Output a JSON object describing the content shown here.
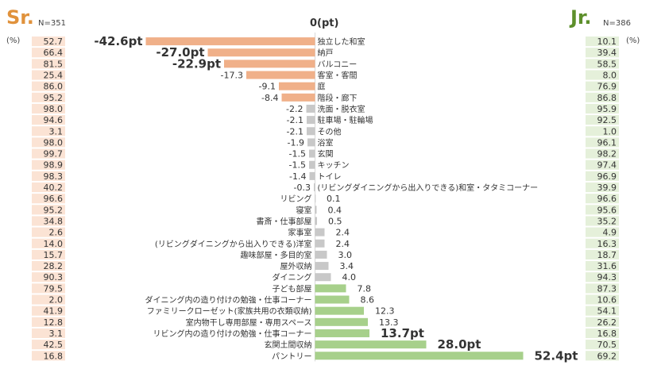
{
  "header": {
    "sr_label": "Sr.",
    "sr_n": "N=351",
    "jr_label": "Jr.",
    "jr_n": "N=386",
    "center_label": "0(pt)",
    "pct_left": "(%)",
    "pct_right": "(%)"
  },
  "colors": {
    "sr_accent": "#e0923c",
    "jr_accent": "#5d8f2b",
    "negative_bar": "#f0b089",
    "neutral_bar": "#c8c8c8",
    "positive_bar": "#a7d08b",
    "sr_cell": "#fbe3d4",
    "jr_cell": "#e5f0da"
  },
  "chart_data": {
    "type": "bar",
    "orientation": "horizontal diverging",
    "categories": [
      "独立した和室",
      "納戸",
      "バルコニー",
      "客室・客間",
      "庭",
      "階段・廊下",
      "洗面・脱衣室",
      "駐車場・駐輪場",
      "その他",
      "浴室",
      "玄関",
      "キッチン",
      "トイレ",
      "(リビングダイニングから出入りできる)和室・タタミコーナー",
      "リビング",
      "寝室",
      "書斎・仕事部屋",
      "家事室",
      "(リビングダイニングから出入りできる)洋室",
      "趣味部屋・多目的室",
      "屋外収納",
      "ダイニング",
      "子ども部屋",
      "ダイニング内の造り付けの勉強・仕事コーナー",
      "ファミリークローゼット(家族共用の衣類収納)",
      "室内物干し専用部屋・専用スペース",
      "リビング内の造り付けの勉強・仕事コーナー",
      "玄関土間収納",
      "パントリー"
    ],
    "diff_labels": [
      "-42.6pt",
      "-27.0pt",
      "-22.9pt",
      "-17.3",
      "-9.1",
      "-8.4",
      "-2.2",
      "-2.1",
      "-2.1",
      "-1.9",
      "-1.5",
      "-1.5",
      "-1.4",
      "-0.3",
      "0.1",
      "0.4",
      "0.5",
      "2.4",
      "2.4",
      "3.0",
      "3.4",
      "4.0",
      "7.8",
      "8.6",
      "12.3",
      "13.3",
      "13.7pt",
      "28.0pt",
      "52.4pt"
    ],
    "series": [
      {
        "name": "Sr.",
        "values": [
          52.7,
          66.4,
          81.5,
          25.4,
          86.0,
          95.2,
          98.0,
          94.6,
          3.1,
          98.0,
          99.7,
          98.9,
          98.3,
          40.2,
          96.6,
          95.2,
          34.8,
          2.6,
          14.0,
          15.7,
          28.2,
          90.3,
          79.5,
          2.0,
          41.9,
          12.8,
          3.1,
          42.5,
          16.8
        ]
      },
      {
        "name": "Jr.",
        "values": [
          10.1,
          39.4,
          58.5,
          8.0,
          76.9,
          86.8,
          95.9,
          92.5,
          1.0,
          96.1,
          98.2,
          97.4,
          96.9,
          39.9,
          96.6,
          95.6,
          35.2,
          4.9,
          16.3,
          18.7,
          31.6,
          94.3,
          87.3,
          10.6,
          54.1,
          26.2,
          16.8,
          70.5,
          69.2
        ]
      }
    ],
    "diff_values": [
      -42.6,
      -27.0,
      -22.9,
      -17.3,
      -9.1,
      -8.4,
      -2.2,
      -2.1,
      -2.1,
      -1.9,
      -1.5,
      -1.5,
      -1.4,
      -0.3,
      0.1,
      0.4,
      0.5,
      2.4,
      2.4,
      3.0,
      3.4,
      4.0,
      7.8,
      8.6,
      12.3,
      13.3,
      13.7,
      28.0,
      52.4
    ],
    "xlabel": "0(pt)",
    "xlim": [
      -52.4,
      52.4
    ]
  }
}
